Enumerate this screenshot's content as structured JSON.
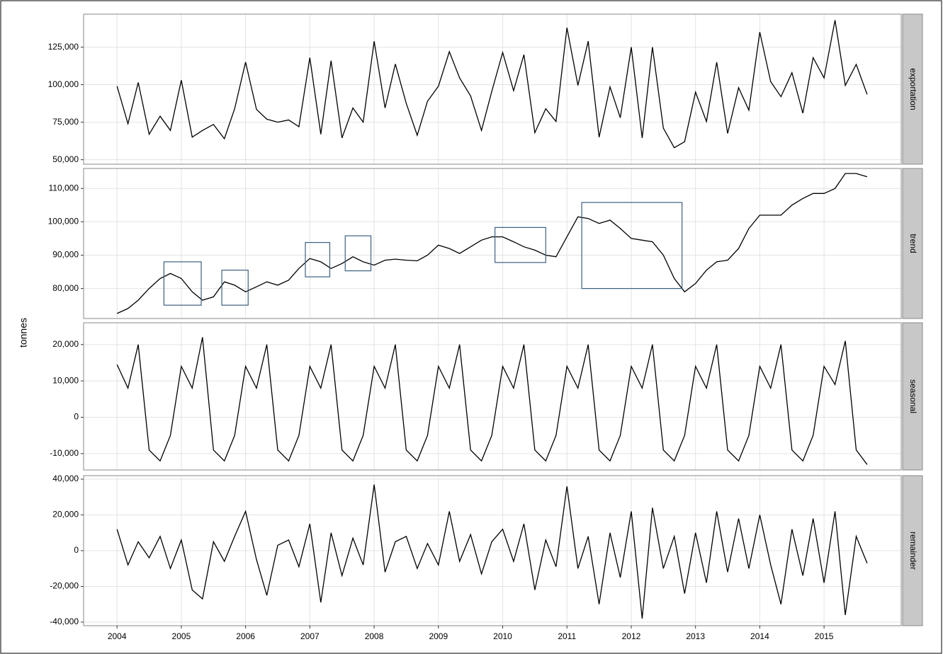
{
  "chart_data": {
    "type": "line",
    "ylabel": "tonnes",
    "grid": true,
    "color": "#000000",
    "x": [
      2004.0,
      2004.17,
      2004.33,
      2004.5,
      2004.67,
      2004.83,
      2005.0,
      2005.17,
      2005.33,
      2005.5,
      2005.67,
      2005.83,
      2006.0,
      2006.17,
      2006.33,
      2006.5,
      2006.67,
      2006.83,
      2007.0,
      2007.17,
      2007.33,
      2007.5,
      2007.67,
      2007.83,
      2008.0,
      2008.17,
      2008.33,
      2008.5,
      2008.67,
      2008.83,
      2009.0,
      2009.17,
      2009.33,
      2009.5,
      2009.67,
      2009.83,
      2010.0,
      2010.17,
      2010.33,
      2010.5,
      2010.67,
      2010.83,
      2011.0,
      2011.17,
      2011.33,
      2011.5,
      2011.67,
      2011.83,
      2012.0,
      2012.17,
      2012.33,
      2012.5,
      2012.67,
      2012.83,
      2013.0,
      2013.17,
      2013.33,
      2013.5,
      2013.67,
      2013.83,
      2014.0,
      2014.17,
      2014.33,
      2014.5,
      2014.67,
      2014.83,
      2015.0,
      2015.17,
      2015.33,
      2015.5,
      2015.67
    ],
    "xlim": [
      2003.48,
      2016.2
    ],
    "xticks": [
      2004,
      2005,
      2006,
      2007,
      2008,
      2009,
      2010,
      2011,
      2012,
      2013,
      2014,
      2015
    ],
    "panels": [
      {
        "strip": "exportation",
        "ylim": [
          47000,
          147000
        ],
        "yticks": [
          {
            "value": 50000,
            "label": "50,000"
          },
          {
            "value": 75000,
            "label": "75,000"
          },
          {
            "value": 100000,
            "label": "100,000"
          },
          {
            "value": 125000,
            "label": "125,000"
          }
        ],
        "values": [
          99000,
          74000,
          101500,
          67000,
          79000,
          69500,
          103000,
          65000,
          69500,
          73500,
          64000,
          84000,
          115000,
          83500,
          77000,
          75000,
          76500,
          72000,
          118000,
          67000,
          116000,
          64500,
          84500,
          75000,
          129000,
          84500,
          113800,
          87500,
          66300,
          89000,
          99000,
          122000,
          104500,
          92500,
          69500,
          95500,
          121500,
          96000,
          120000,
          68000,
          84000,
          75500,
          138000,
          99500,
          129000,
          65000,
          98500,
          78000,
          125000,
          64500,
          125000,
          71000,
          58000,
          62000,
          95000,
          75500,
          115000,
          67500,
          98000,
          83000,
          135000,
          102000,
          92000,
          108000,
          81000,
          118000,
          104500,
          143000,
          99500,
          113500,
          93500
        ]
      },
      {
        "strip": "trend",
        "ylim": [
          71000,
          116000
        ],
        "yticks": [
          {
            "value": 80000,
            "label": "80,000"
          },
          {
            "value": 90000,
            "label": "90,000"
          },
          {
            "value": 100000,
            "label": "100,000"
          },
          {
            "value": 110000,
            "label": "110,000"
          }
        ],
        "values": [
          72500,
          74000,
          76500,
          80000,
          83000,
          84500,
          83000,
          79000,
          76500,
          77500,
          82000,
          81000,
          79000,
          80500,
          82000,
          81000,
          82500,
          86000,
          89000,
          88000,
          86000,
          87500,
          89500,
          88000,
          87000,
          88500,
          88800,
          88500,
          88300,
          90000,
          93000,
          92000,
          90500,
          92500,
          94500,
          95500,
          95500,
          94000,
          92500,
          91500,
          90000,
          89500,
          95500,
          101500,
          101000,
          99500,
          100500,
          98000,
          95000,
          94500,
          94000,
          90000,
          83000,
          79000,
          81500,
          85500,
          88000,
          88500,
          92000,
          98000,
          102000,
          102000,
          102000,
          105000,
          107000,
          108500,
          108500,
          110000,
          114500,
          114500,
          113500
        ],
        "boxes": [
          {
            "xlim": [
              2004.73,
              2005.31
            ],
            "ylim": [
              75000,
              88000
            ]
          },
          {
            "xlim": [
              2005.63,
              2006.04
            ],
            "ylim": [
              75000,
              85500
            ]
          },
          {
            "xlim": [
              2006.93,
              2007.31
            ],
            "ylim": [
              83500,
              93800
            ]
          },
          {
            "xlim": [
              2007.55,
              2007.95
            ],
            "ylim": [
              85300,
              95800
            ]
          },
          {
            "xlim": [
              2009.88,
              2010.67
            ],
            "ylim": [
              87800,
              98300
            ]
          },
          {
            "xlim": [
              2011.23,
              2012.79
            ],
            "ylim": [
              80000,
              105800
            ]
          }
        ],
        "box_color": "#3d5f80"
      },
      {
        "strip": "seasonal",
        "ylim": [
          -14500,
          26000
        ],
        "yticks": [
          {
            "value": -10000,
            "label": "-10,000"
          },
          0,
          {
            "value": 10000,
            "label": "10,000"
          },
          {
            "value": 20000,
            "label": "20,000"
          }
        ],
        "values": [
          14500,
          8000,
          20000,
          -9000,
          -12000,
          -5000,
          14000,
          8000,
          22000,
          -9000,
          -12000,
          -5000,
          14000,
          8000,
          20000,
          -9000,
          -12000,
          -5000,
          14000,
          8000,
          20000,
          -9000,
          -12000,
          -5000,
          14000,
          8000,
          20000,
          -9000,
          -12000,
          -5000,
          14000,
          8000,
          20000,
          -9000,
          -12000,
          -5000,
          14000,
          8000,
          20000,
          -9000,
          -12000,
          -5000,
          14000,
          8000,
          20000,
          -9000,
          -12000,
          -5000,
          14000,
          8000,
          20000,
          -9000,
          -12000,
          -5000,
          14000,
          8000,
          20000,
          -9000,
          -12000,
          -5000,
          14000,
          8000,
          20000,
          -9000,
          -12000,
          -5000,
          14000,
          9000,
          21000,
          -9000,
          -13000
        ]
      },
      {
        "strip": "remainder",
        "ylim": [
          -42000,
          42000
        ],
        "yticks": [
          {
            "value": -40000,
            "label": "-40,000"
          },
          {
            "value": -20000,
            "label": "-20,000"
          },
          0,
          {
            "value": 20000,
            "label": "20,000"
          },
          {
            "value": 40000,
            "label": "40,000"
          }
        ],
        "values": [
          12000,
          -8000,
          5000,
          -4000,
          8000,
          -10000,
          6000,
          -22000,
          -27000,
          5000,
          -6000,
          8000,
          22000,
          -5000,
          -25000,
          3000,
          6000,
          -9000,
          15000,
          -29000,
          10000,
          -14000,
          7000,
          -8000,
          37000,
          -12000,
          5000,
          8000,
          -10000,
          4000,
          -8000,
          22000,
          -6000,
          9000,
          -13000,
          5000,
          12000,
          -6000,
          15000,
          -22000,
          6000,
          -9000,
          36000,
          -10000,
          8000,
          -30000,
          10000,
          -15000,
          22000,
          -38000,
          24000,
          -10000,
          8000,
          -24000,
          10000,
          -18000,
          22000,
          -12000,
          18000,
          -10000,
          20000,
          -8000,
          -30000,
          12000,
          -14000,
          18000,
          -18000,
          22000,
          -36000,
          8000,
          -7000
        ]
      }
    ]
  }
}
